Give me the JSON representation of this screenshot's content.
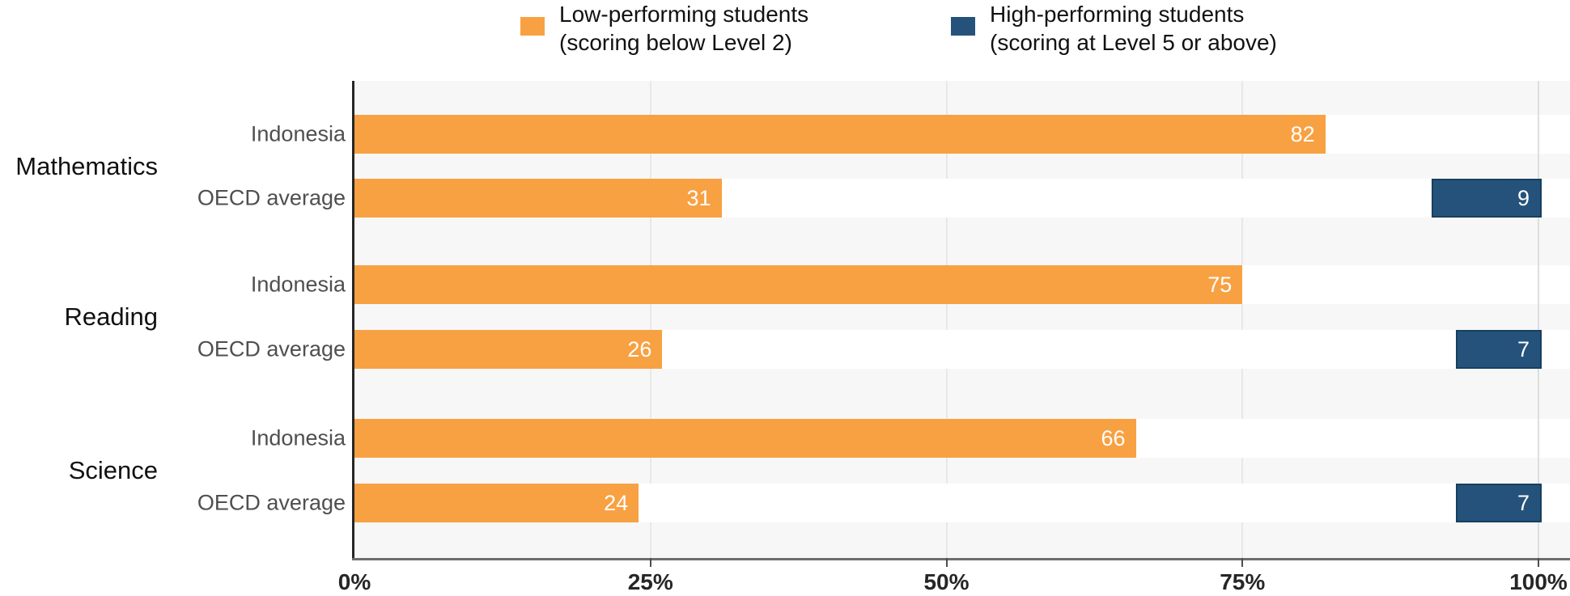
{
  "legend": {
    "items": [
      {
        "line1": "Low-performing students",
        "line2": "(scoring below Level 2)",
        "color": "#F8A142"
      },
      {
        "line1": "High-performing students",
        "line2": "(scoring at Level 5 or above)",
        "color": "#25527A"
      }
    ]
  },
  "chart_data": {
    "type": "bar",
    "orientation": "horizontal",
    "title": "",
    "xlabel": "",
    "ylabel": "",
    "xlim": [
      0,
      100
    ],
    "grid": true,
    "legend_position": "top",
    "x_ticks": [
      {
        "label": "0%",
        "value": 0
      },
      {
        "label": "25%",
        "value": 25
      },
      {
        "label": "50%",
        "value": 50
      },
      {
        "label": "75%",
        "value": 75
      },
      {
        "label": "100%",
        "value": 100
      }
    ],
    "series": [
      {
        "name": "Low-performing students (scoring below Level 2)",
        "key": "low",
        "color": "#F8A142",
        "anchor": "left"
      },
      {
        "name": "High-performing students (scoring at Level 5 or above)",
        "key": "high",
        "color": "#25527A",
        "border_color": "#17405F",
        "anchor": "right"
      }
    ],
    "groups": [
      "Mathematics",
      "Reading",
      "Science"
    ],
    "rows": [
      {
        "group": "Mathematics",
        "label": "Indonesia",
        "low": 82,
        "high": null
      },
      {
        "group": "Mathematics",
        "label": "OECD average",
        "low": 31,
        "high": 9
      },
      {
        "group": "Reading",
        "label": "Indonesia",
        "low": 75,
        "high": null
      },
      {
        "group": "Reading",
        "label": "OECD average",
        "low": 26,
        "high": 7
      },
      {
        "group": "Science",
        "label": "Indonesia",
        "low": 66,
        "high": null
      },
      {
        "group": "Science",
        "label": "OECD average",
        "low": 24,
        "high": 7
      }
    ]
  },
  "colors": {
    "plot_background": "#F7F7F7",
    "row_strip": "#FFFFFF",
    "gridline": "#E8E8E8",
    "gridline_100": "#DEDEDE",
    "axis_left": "#262626",
    "axis_bottom": "#6E6E6E",
    "tick": "#4D4D4D",
    "tick_label": "#262626",
    "row_label": "#4F4F4F",
    "group_label": "#111111",
    "value_label": "#FFFFFF"
  }
}
